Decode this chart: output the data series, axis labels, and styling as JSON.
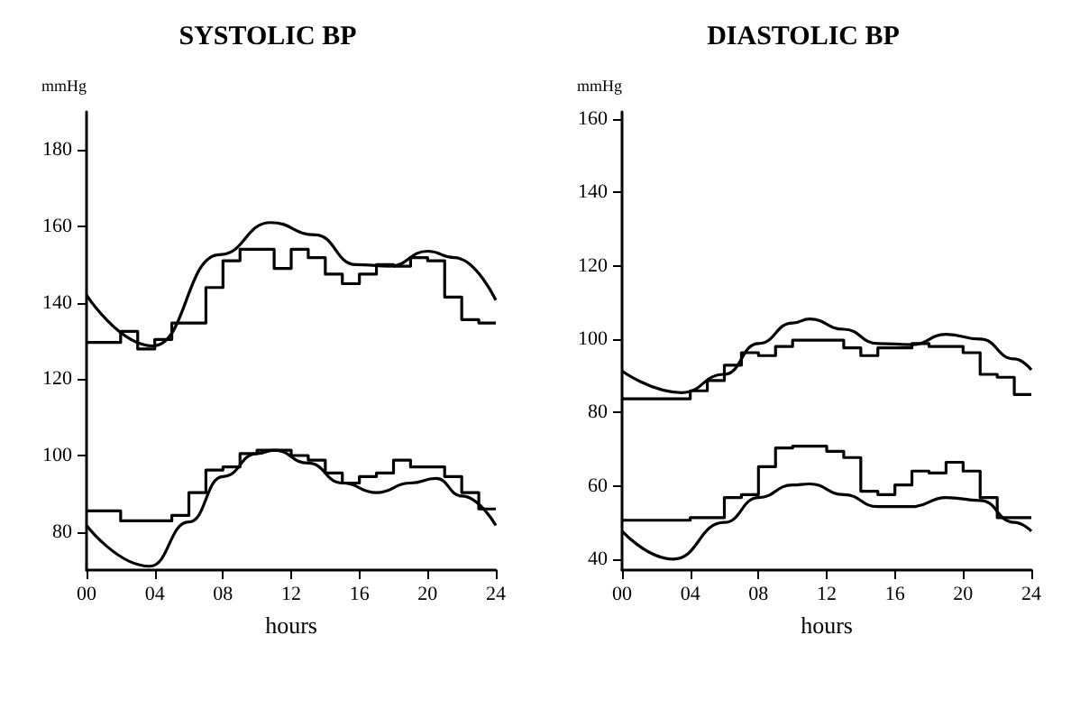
{
  "chart_data": [
    {
      "type": "line",
      "title": "SYSTOLIC BP",
      "xlabel": "hours",
      "ylabel": "mmHg",
      "xlim": [
        0,
        24
      ],
      "xticks": [
        {
          "value": 0,
          "label": "00"
        },
        {
          "value": 4,
          "label": "04"
        },
        {
          "value": 8,
          "label": "08"
        },
        12,
        16,
        20,
        24
      ],
      "ylim": [
        70,
        190
      ],
      "yticks": [
        80,
        100,
        120,
        140,
        160,
        180
      ],
      "grid": false,
      "marker": "none",
      "series": [
        {
          "type": "step",
          "color": "#000000",
          "x": [
            0,
            1,
            2,
            3,
            4,
            5,
            6,
            7,
            8,
            9,
            10,
            11,
            12,
            13,
            14,
            15,
            16,
            17,
            18,
            19,
            20,
            21,
            22,
            23,
            24
          ],
          "values": [
            129.6,
            129.6,
            132.5,
            127.9,
            130.4,
            134.7,
            134.7,
            144,
            151,
            154,
            154,
            149,
            154,
            151.8,
            147.5,
            145,
            147.5,
            150,
            149.6,
            151.8,
            151,
            141.5,
            135.6,
            134.7,
            134.7
          ]
        },
        {
          "color": "#000000",
          "x": [
            0,
            3.9,
            7.8,
            10.8,
            13.4,
            15.8,
            17.8,
            20,
            21.6,
            24
          ],
          "values": [
            142,
            128.7,
            152.6,
            161,
            157.8,
            150,
            149.6,
            153.5,
            151.8,
            140.7
          ]
        },
        {
          "type": "step",
          "color": "#000000",
          "x": [
            0,
            1,
            2,
            3,
            4,
            5,
            6,
            7,
            8,
            9,
            10,
            11,
            12,
            13,
            14,
            15,
            16,
            17,
            18,
            19,
            20,
            21,
            22,
            23,
            24
          ],
          "values": [
            85.5,
            85.5,
            82.9,
            82.9,
            82.9,
            84.3,
            90.3,
            96.2,
            97,
            100.5,
            101.4,
            101.4,
            100,
            98.8,
            95.4,
            92.8,
            94.5,
            95.4,
            98.8,
            97,
            97,
            94.5,
            90.3,
            86,
            86
          ]
        },
        {
          "color": "#000000",
          "x": [
            0,
            3.7,
            6,
            8,
            10,
            11,
            13,
            15,
            17,
            19,
            20.5,
            22,
            24
          ],
          "values": [
            81.7,
            71,
            82.6,
            94.5,
            100.5,
            101.4,
            98,
            92.8,
            90.3,
            92.8,
            94,
            89.4,
            81.7
          ]
        }
      ]
    },
    {
      "type": "line",
      "title": "DIASTOLIC BP",
      "xlabel": "hours",
      "ylabel": "mmHg",
      "xlim": [
        0,
        24
      ],
      "xticks": [
        {
          "value": 0,
          "label": "00"
        },
        {
          "value": 4,
          "label": "04"
        },
        {
          "value": 8,
          "label": "08"
        },
        12,
        16,
        20,
        24
      ],
      "ylim": [
        37,
        162
      ],
      "yticks": [
        40,
        60,
        80,
        100,
        120,
        140,
        160
      ],
      "grid": false,
      "marker": "none",
      "series": [
        {
          "type": "step",
          "color": "#000000",
          "x": [
            0,
            1,
            2,
            3,
            4,
            5,
            6,
            7,
            8,
            9,
            10,
            11,
            12,
            13,
            14,
            15,
            16,
            17,
            18,
            19,
            20,
            21,
            22,
            23,
            24
          ],
          "values": [
            83.7,
            83.7,
            83.7,
            83.7,
            85.9,
            88.7,
            92.9,
            96.3,
            95.5,
            98,
            99.7,
            99.7,
            99.7,
            97.6,
            95.5,
            97.6,
            97.6,
            98.8,
            98,
            98,
            96.3,
            90.4,
            89.6,
            84.9,
            84.9
          ]
        },
        {
          "color": "#000000",
          "x": [
            0,
            3.5,
            6,
            8,
            10,
            11,
            13,
            15,
            17,
            19,
            21,
            23,
            24
          ],
          "values": [
            91.3,
            85.4,
            90.4,
            98.8,
            104.4,
            105.5,
            102.7,
            98.8,
            98.5,
            101.3,
            100,
            94.6,
            91.6
          ]
        },
        {
          "type": "step",
          "color": "#000000",
          "x": [
            0,
            1,
            2,
            3,
            4,
            5,
            6,
            7,
            8,
            9,
            10,
            11,
            12,
            13,
            14,
            15,
            16,
            17,
            18,
            19,
            20,
            21,
            22,
            23,
            24
          ],
          "values": [
            50.6,
            50.6,
            50.6,
            50.6,
            51.3,
            51.3,
            56.8,
            57.6,
            65.2,
            70.3,
            70.8,
            70.8,
            69.4,
            67.7,
            58.5,
            57.6,
            60.2,
            64,
            63.5,
            66.4,
            64,
            56.8,
            51.3,
            51.3,
            51.3
          ]
        },
        {
          "color": "#000000",
          "x": [
            0,
            3,
            6,
            8,
            10,
            11,
            13,
            15,
            17,
            19,
            21,
            23,
            24
          ],
          "values": [
            47.6,
            40,
            50,
            56.8,
            60.2,
            60.5,
            57.6,
            54.3,
            54.3,
            56.8,
            56,
            50,
            47.6
          ]
        }
      ]
    }
  ]
}
